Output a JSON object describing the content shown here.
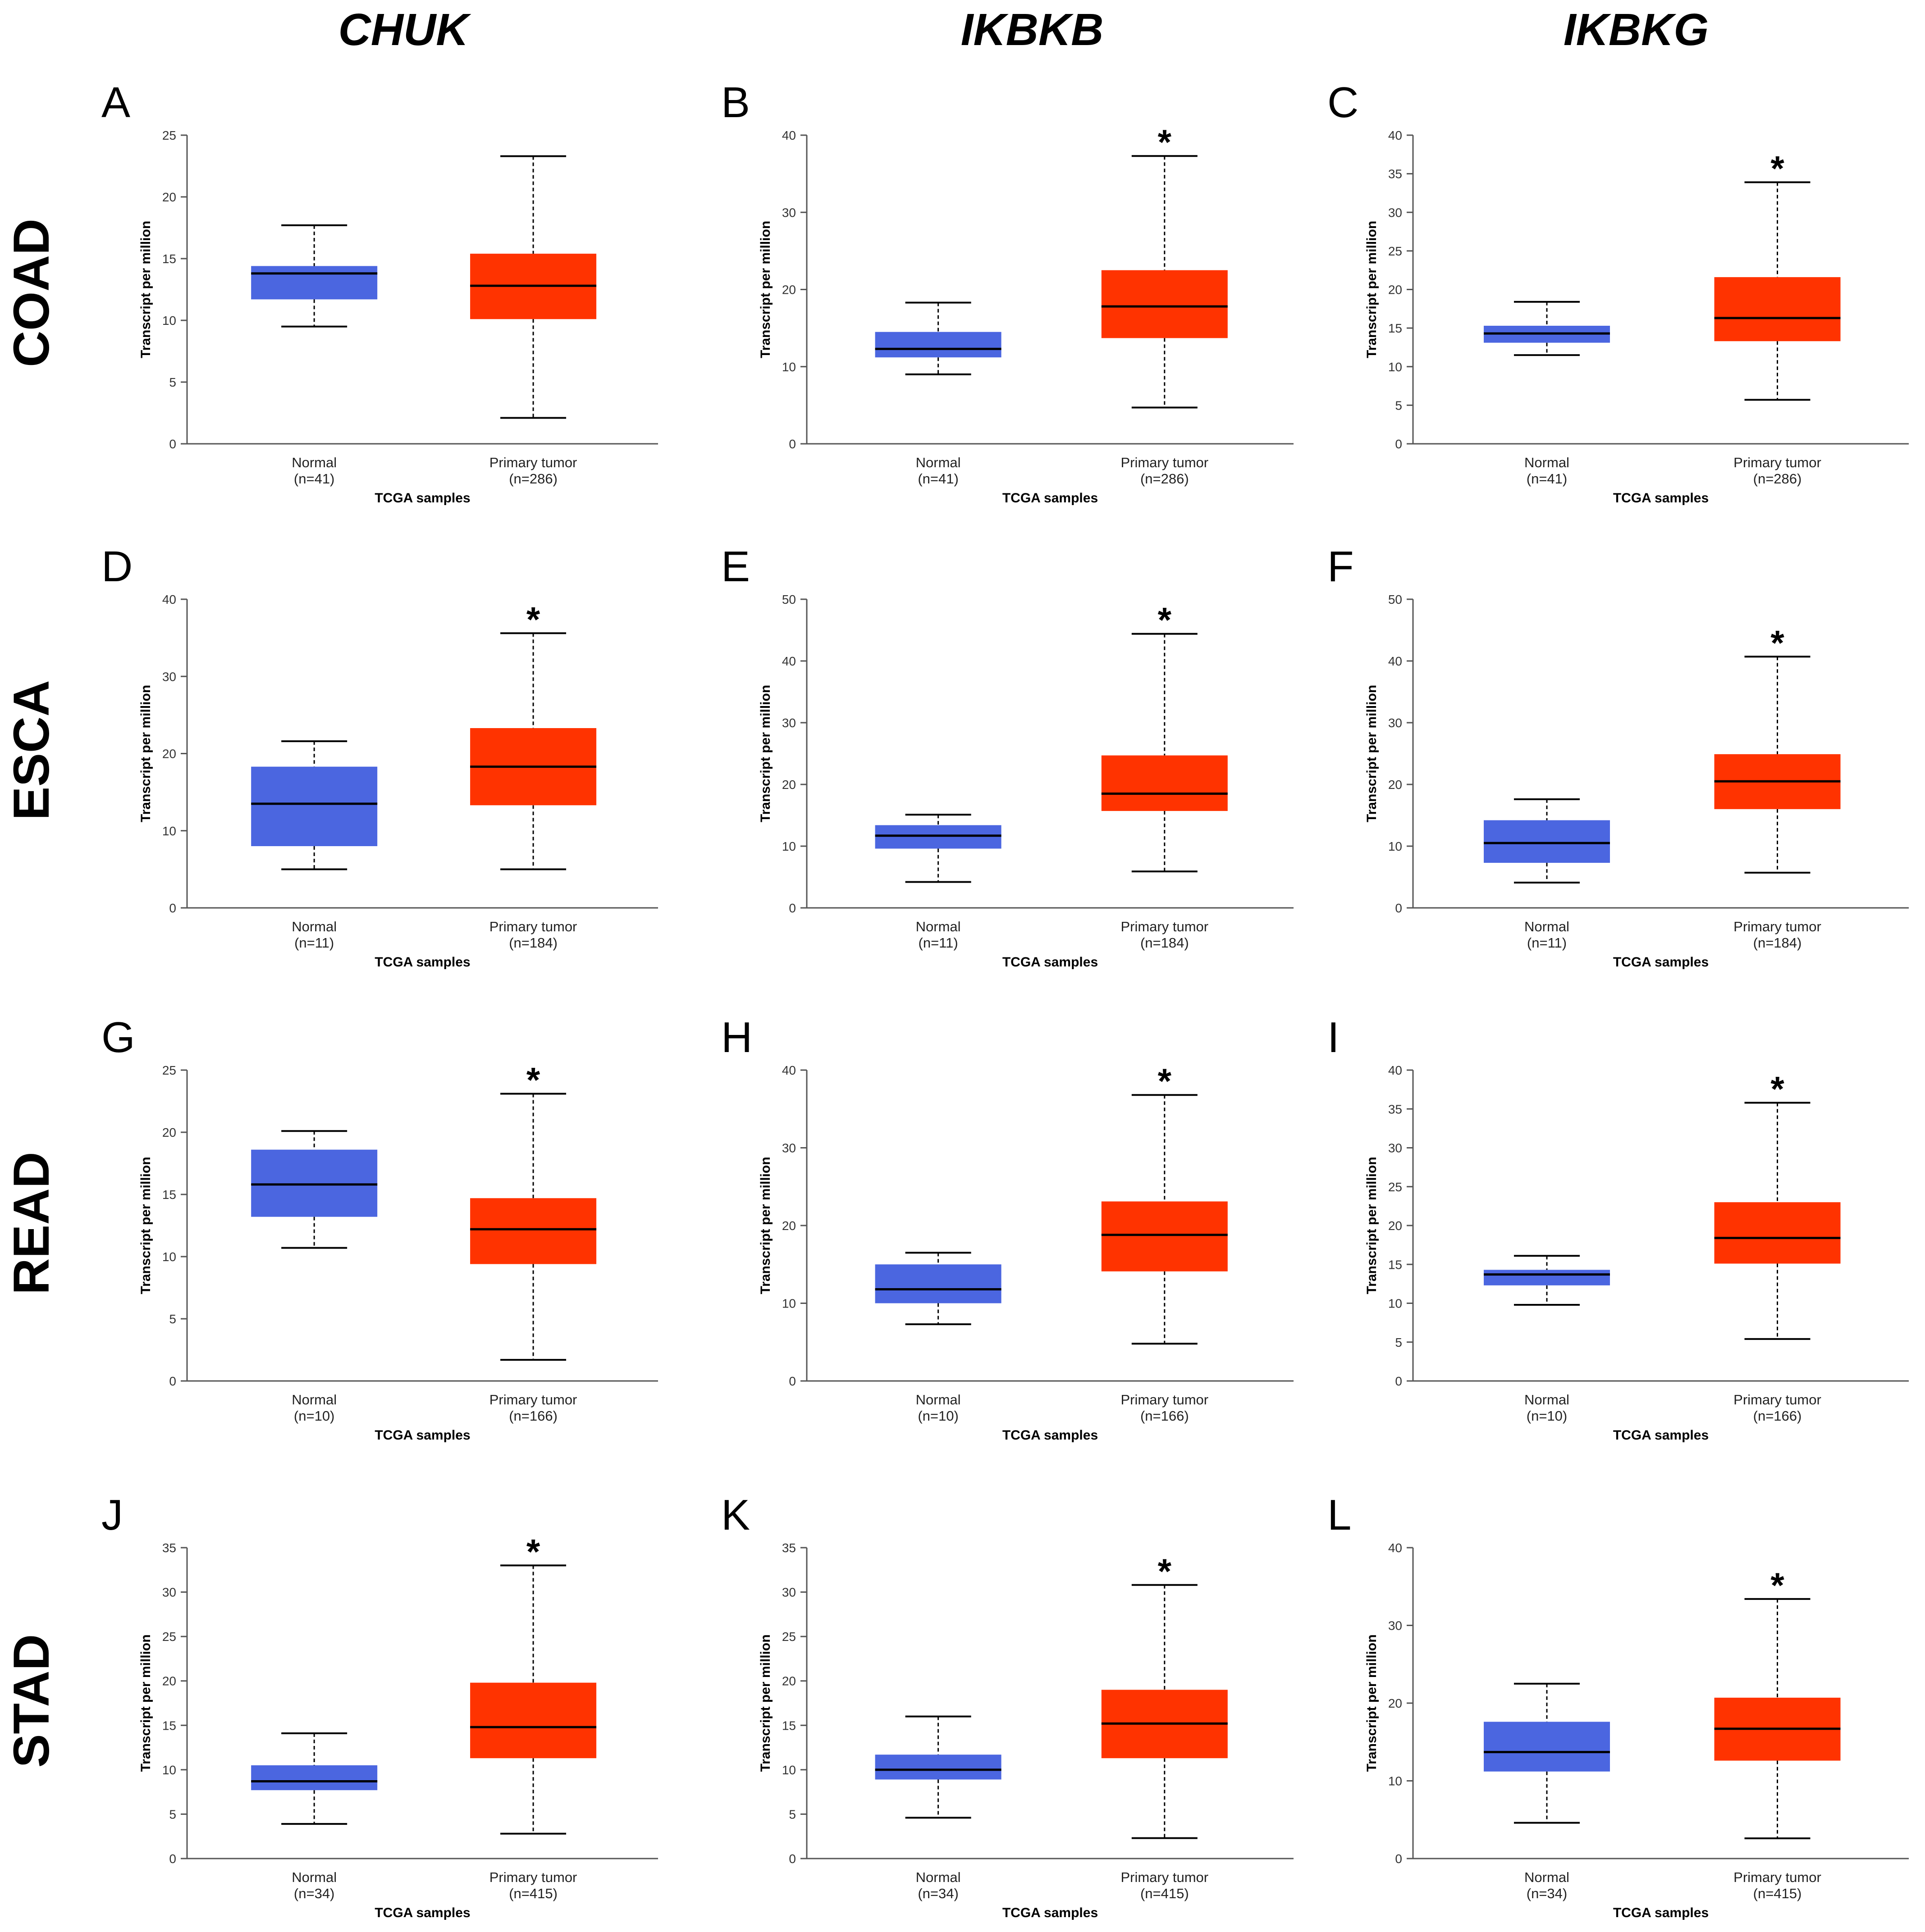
{
  "figure": {
    "columns": [
      "CHUK",
      "IKBKB",
      "IKBKG"
    ],
    "rows": [
      "COAD",
      "ESCA",
      "READ",
      "STAD"
    ],
    "colors": {
      "normal": "#4B66E0",
      "tumor": "#FF3300",
      "text": "#000000",
      "axis": "#555555"
    }
  },
  "chart_data": [
    {
      "type": "box",
      "panel": "A",
      "gene": "CHUK",
      "cancer": "COAD",
      "ylabel": "Transcript per million",
      "xlabel": "TCGA samples",
      "ylim": [
        0,
        25
      ],
      "yticks": [
        0,
        5,
        10,
        15,
        20,
        25
      ],
      "significant": false,
      "groups": [
        {
          "name": "Normal",
          "n": "(n=41)",
          "min": 9.5,
          "q1": 11.7,
          "median": 13.8,
          "q3": 14.4,
          "max": 17.7
        },
        {
          "name": "Primary tumor",
          "n": "(n=286)",
          "min": 2.1,
          "q1": 10.1,
          "median": 12.8,
          "q3": 15.4,
          "max": 23.3
        }
      ]
    },
    {
      "type": "box",
      "panel": "B",
      "gene": "IKBKB",
      "cancer": "COAD",
      "ylabel": "Transcript per million",
      "xlabel": "TCGA samples",
      "ylim": [
        0,
        40
      ],
      "yticks": [
        0,
        10,
        20,
        30,
        40
      ],
      "significant": true,
      "groups": [
        {
          "name": "Normal",
          "n": "(n=41)",
          "min": 9.0,
          "q1": 11.2,
          "median": 12.3,
          "q3": 14.5,
          "max": 18.3
        },
        {
          "name": "Primary tumor",
          "n": "(n=286)",
          "min": 4.7,
          "q1": 13.7,
          "median": 17.8,
          "q3": 22.5,
          "max": 37.3
        }
      ]
    },
    {
      "type": "box",
      "panel": "C",
      "gene": "IKBKG",
      "cancer": "COAD",
      "ylabel": "Transcript per million",
      "xlabel": "TCGA samples",
      "ylim": [
        0,
        40
      ],
      "yticks": [
        0,
        5,
        10,
        15,
        20,
        25,
        30,
        35,
        40
      ],
      "significant": true,
      "groups": [
        {
          "name": "Normal",
          "n": "(n=41)",
          "min": 11.5,
          "q1": 13.1,
          "median": 14.3,
          "q3": 15.3,
          "max": 18.4
        },
        {
          "name": "Primary tumor",
          "n": "(n=286)",
          "min": 5.7,
          "q1": 13.3,
          "median": 16.3,
          "q3": 21.6,
          "max": 33.9
        }
      ]
    },
    {
      "type": "box",
      "panel": "D",
      "gene": "CHUK",
      "cancer": "ESCA",
      "ylabel": "Transcript per million",
      "xlabel": "TCGA samples",
      "ylim": [
        0,
        40
      ],
      "yticks": [
        0,
        10,
        20,
        30,
        40
      ],
      "significant": true,
      "groups": [
        {
          "name": "Normal",
          "n": "(n=11)",
          "min": 5.0,
          "q1": 8.0,
          "median": 13.5,
          "q3": 18.3,
          "max": 21.6
        },
        {
          "name": "Primary tumor",
          "n": "(n=184)",
          "min": 5.0,
          "q1": 13.3,
          "median": 18.3,
          "q3": 23.3,
          "max": 35.6
        }
      ]
    },
    {
      "type": "box",
      "panel": "E",
      "gene": "IKBKB",
      "cancer": "ESCA",
      "ylabel": "Transcript per million",
      "xlabel": "TCGA samples",
      "ylim": [
        0,
        50
      ],
      "yticks": [
        0,
        10,
        20,
        30,
        40,
        50
      ],
      "significant": true,
      "groups": [
        {
          "name": "Normal",
          "n": "(n=11)",
          "min": 4.2,
          "q1": 9.6,
          "median": 11.7,
          "q3": 13.4,
          "max": 15.1
        },
        {
          "name": "Primary tumor",
          "n": "(n=184)",
          "min": 5.9,
          "q1": 15.7,
          "median": 18.5,
          "q3": 24.7,
          "max": 44.4
        }
      ]
    },
    {
      "type": "box",
      "panel": "F",
      "gene": "IKBKG",
      "cancer": "ESCA",
      "ylabel": "Transcript per million",
      "xlabel": "TCGA samples",
      "ylim": [
        0,
        50
      ],
      "yticks": [
        0,
        10,
        20,
        30,
        40,
        50
      ],
      "significant": true,
      "groups": [
        {
          "name": "Normal",
          "n": "(n=11)",
          "min": 4.1,
          "q1": 7.3,
          "median": 10.5,
          "q3": 14.2,
          "max": 17.6
        },
        {
          "name": "Primary tumor",
          "n": "(n=184)",
          "min": 5.7,
          "q1": 16.0,
          "median": 20.5,
          "q3": 24.9,
          "max": 40.7
        }
      ]
    },
    {
      "type": "box",
      "panel": "G",
      "gene": "CHUK",
      "cancer": "READ",
      "ylabel": "Transcript per million",
      "xlabel": "TCGA samples",
      "ylim": [
        0,
        25
      ],
      "yticks": [
        0,
        5,
        10,
        15,
        20,
        25
      ],
      "significant": true,
      "groups": [
        {
          "name": "Normal",
          "n": "(n=10)",
          "min": 10.7,
          "q1": 13.2,
          "median": 15.8,
          "q3": 18.6,
          "max": 20.1
        },
        {
          "name": "Primary tumor",
          "n": "(n=166)",
          "min": 1.7,
          "q1": 9.4,
          "median": 12.2,
          "q3": 14.7,
          "max": 23.1
        }
      ]
    },
    {
      "type": "box",
      "panel": "H",
      "gene": "IKBKB",
      "cancer": "READ",
      "ylabel": "Transcript per million",
      "xlabel": "TCGA samples",
      "ylim": [
        0,
        40
      ],
      "yticks": [
        0,
        10,
        20,
        30,
        40
      ],
      "significant": true,
      "groups": [
        {
          "name": "Normal",
          "n": "(n=10)",
          "min": 7.3,
          "q1": 10.0,
          "median": 11.8,
          "q3": 15.0,
          "max": 16.5
        },
        {
          "name": "Primary tumor",
          "n": "(n=166)",
          "min": 4.8,
          "q1": 14.1,
          "median": 18.8,
          "q3": 23.1,
          "max": 36.8
        }
      ]
    },
    {
      "type": "box",
      "panel": "I",
      "gene": "IKBKG",
      "cancer": "READ",
      "ylabel": "Transcript per million",
      "xlabel": "TCGA samples",
      "ylim": [
        0,
        40
      ],
      "yticks": [
        0,
        5,
        10,
        15,
        20,
        25,
        30,
        35,
        40
      ],
      "significant": true,
      "groups": [
        {
          "name": "Normal",
          "n": "(n=10)",
          "min": 9.8,
          "q1": 12.3,
          "median": 13.7,
          "q3": 14.3,
          "max": 16.1
        },
        {
          "name": "Primary tumor",
          "n": "(n=166)",
          "min": 5.4,
          "q1": 15.1,
          "median": 18.4,
          "q3": 23.0,
          "max": 35.8
        }
      ]
    },
    {
      "type": "box",
      "panel": "J",
      "gene": "CHUK",
      "cancer": "STAD",
      "ylabel": "Transcript per million",
      "xlabel": "TCGA samples",
      "ylim": [
        0,
        35
      ],
      "yticks": [
        0,
        5,
        10,
        15,
        20,
        25,
        30,
        35
      ],
      "significant": true,
      "groups": [
        {
          "name": "Normal",
          "n": "(n=34)",
          "min": 3.9,
          "q1": 7.7,
          "median": 8.7,
          "q3": 10.5,
          "max": 14.1
        },
        {
          "name": "Primary tumor",
          "n": "(n=415)",
          "min": 2.8,
          "q1": 11.3,
          "median": 14.8,
          "q3": 19.8,
          "max": 33.0
        }
      ]
    },
    {
      "type": "box",
      "panel": "K",
      "gene": "IKBKB",
      "cancer": "STAD",
      "ylabel": "Transcript per million",
      "xlabel": "TCGA samples",
      "ylim": [
        0,
        35
      ],
      "yticks": [
        0,
        5,
        10,
        15,
        20,
        25,
        30,
        35
      ],
      "significant": true,
      "groups": [
        {
          "name": "Normal",
          "n": "(n=34)",
          "min": 4.6,
          "q1": 8.9,
          "median": 10.0,
          "q3": 11.7,
          "max": 16.0
        },
        {
          "name": "Primary tumor",
          "n": "(n=415)",
          "min": 2.3,
          "q1": 11.3,
          "median": 15.2,
          "q3": 19.0,
          "max": 30.8
        }
      ]
    },
    {
      "type": "box",
      "panel": "L",
      "gene": "IKBKG",
      "cancer": "STAD",
      "ylabel": "Transcript per million",
      "xlabel": "TCGA samples",
      "ylim": [
        0,
        40
      ],
      "yticks": [
        0,
        10,
        20,
        30,
        40
      ],
      "significant": true,
      "groups": [
        {
          "name": "Normal",
          "n": "(n=34)",
          "min": 4.6,
          "q1": 11.2,
          "median": 13.7,
          "q3": 17.6,
          "max": 22.5
        },
        {
          "name": "Primary tumor",
          "n": "(n=415)",
          "min": 2.6,
          "q1": 12.6,
          "median": 16.7,
          "q3": 20.7,
          "max": 33.4
        }
      ]
    }
  ]
}
